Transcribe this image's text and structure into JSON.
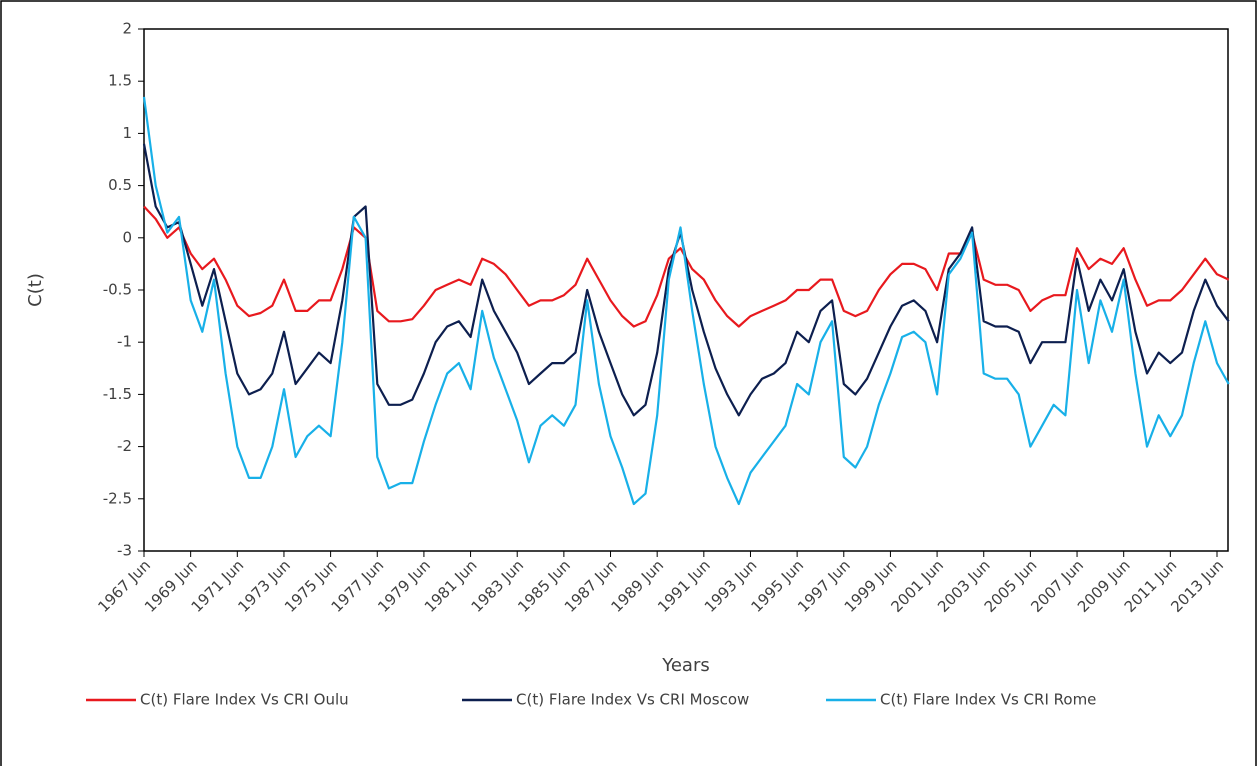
{
  "chart_data": {
    "type": "line",
    "x_label": "Years",
    "y_label": "C(t)",
    "categories": [
      "1967 Jun",
      null,
      null,
      null,
      "1969 Jun",
      null,
      null,
      null,
      "1971 Jun",
      null,
      null,
      null,
      "1973 Jun",
      null,
      null,
      null,
      "1975 Jun",
      null,
      null,
      null,
      "1977 Jun",
      null,
      null,
      null,
      "1979 Jun",
      null,
      null,
      null,
      "1981 Jun",
      null,
      null,
      null,
      "1983 Jun",
      null,
      null,
      null,
      "1985 Jun",
      null,
      null,
      null,
      "1987 Jun",
      null,
      null,
      null,
      "1989 Jun",
      null,
      null,
      null,
      "1991 Jun",
      null,
      null,
      null,
      "1993 Jun",
      null,
      null,
      null,
      "1995 Jun",
      null,
      null,
      null,
      "1997 Jun",
      null,
      null,
      null,
      "1999 Jun",
      null,
      null,
      null,
      "2001 Jun",
      null,
      null,
      null,
      "2003 Jun",
      null,
      null,
      null,
      "2005 Jun",
      null,
      null,
      null,
      "2007 Jun",
      null,
      null,
      null,
      "2009 Jun",
      null,
      null,
      null,
      "2011 Jun",
      null,
      null,
      null,
      "2013 Jun",
      null
    ],
    "series": [
      {
        "name": "C(t) Flare Index Vs CRI Oulu",
        "color": "#e8191e",
        "values": [
          0.3,
          0.18,
          0.0,
          0.1,
          -0.15,
          -0.3,
          -0.2,
          -0.4,
          -0.65,
          -0.75,
          -0.72,
          -0.65,
          -0.4,
          -0.7,
          -0.7,
          -0.6,
          -0.6,
          -0.3,
          0.1,
          0.0,
          -0.7,
          -0.8,
          -0.8,
          -0.78,
          -0.65,
          -0.5,
          -0.45,
          -0.4,
          -0.45,
          -0.2,
          -0.25,
          -0.35,
          -0.5,
          -0.65,
          -0.6,
          -0.6,
          -0.55,
          -0.45,
          -0.2,
          -0.4,
          -0.6,
          -0.75,
          -0.85,
          -0.8,
          -0.55,
          -0.2,
          -0.1,
          -0.3,
          -0.4,
          -0.6,
          -0.75,
          -0.85,
          -0.75,
          -0.7,
          -0.65,
          -0.6,
          -0.5,
          -0.5,
          -0.4,
          -0.4,
          -0.7,
          -0.75,
          -0.7,
          -0.5,
          -0.35,
          -0.25,
          -0.25,
          -0.3,
          -0.5,
          -0.15,
          -0.15,
          0.05,
          -0.4,
          -0.45,
          -0.45,
          -0.5,
          -0.7,
          -0.6,
          -0.55,
          -0.55,
          -0.1,
          -0.3,
          -0.2,
          -0.25,
          -0.1,
          -0.4,
          -0.65,
          -0.6,
          -0.6,
          -0.5,
          -0.35,
          -0.2,
          -0.35,
          -0.4
        ]
      },
      {
        "name": "C(t) Flare Index Vs CRI Moscow",
        "color": "#0d1f4f",
        "values": [
          0.9,
          0.3,
          0.1,
          0.15,
          -0.25,
          -0.65,
          -0.3,
          -0.8,
          -1.3,
          -1.5,
          -1.45,
          -1.3,
          -0.9,
          -1.4,
          -1.25,
          -1.1,
          -1.2,
          -0.6,
          0.2,
          0.3,
          -1.4,
          -1.6,
          -1.6,
          -1.55,
          -1.3,
          -1.0,
          -0.85,
          -0.8,
          -0.95,
          -0.4,
          -0.7,
          -0.9,
          -1.1,
          -1.4,
          -1.3,
          -1.2,
          -1.2,
          -1.1,
          -0.5,
          -0.9,
          -1.2,
          -1.5,
          -1.7,
          -1.6,
          -1.1,
          -0.3,
          0.05,
          -0.5,
          -0.9,
          -1.25,
          -1.5,
          -1.7,
          -1.5,
          -1.35,
          -1.3,
          -1.2,
          -0.9,
          -1.0,
          -0.7,
          -0.6,
          -1.4,
          -1.5,
          -1.35,
          -1.1,
          -0.85,
          -0.65,
          -0.6,
          -0.7,
          -1.0,
          -0.3,
          -0.15,
          0.1,
          -0.8,
          -0.85,
          -0.85,
          -0.9,
          -1.2,
          -1.0,
          -1.0,
          -1.0,
          -0.2,
          -0.7,
          -0.4,
          -0.6,
          -0.3,
          -0.9,
          -1.3,
          -1.1,
          -1.2,
          -1.1,
          -0.7,
          -0.4,
          -0.65,
          -0.8
        ]
      },
      {
        "name": "C(t) Flare Index Vs CRI Rome",
        "color": "#18b0e8",
        "values": [
          1.35,
          0.5,
          0.05,
          0.2,
          -0.6,
          -0.9,
          -0.4,
          -1.3,
          -2.0,
          -2.3,
          -2.3,
          -2.0,
          -1.45,
          -2.1,
          -1.9,
          -1.8,
          -1.9,
          -1.0,
          0.2,
          0.0,
          -2.1,
          -2.4,
          -2.35,
          -2.35,
          -1.95,
          -1.6,
          -1.3,
          -1.2,
          -1.45,
          -0.7,
          -1.15,
          -1.45,
          -1.75,
          -2.15,
          -1.8,
          -1.7,
          -1.8,
          -1.6,
          -0.6,
          -1.4,
          -1.9,
          -2.2,
          -2.55,
          -2.45,
          -1.7,
          -0.4,
          0.1,
          -0.7,
          -1.4,
          -2.0,
          -2.3,
          -2.55,
          -2.25,
          -2.1,
          -1.95,
          -1.8,
          -1.4,
          -1.5,
          -1.0,
          -0.8,
          -2.1,
          -2.2,
          -2.0,
          -1.6,
          -1.3,
          -0.95,
          -0.9,
          -1.0,
          -1.5,
          -0.35,
          -0.2,
          0.05,
          -1.3,
          -1.35,
          -1.35,
          -1.5,
          -2.0,
          -1.8,
          -1.6,
          -1.7,
          -0.5,
          -1.2,
          -0.6,
          -0.9,
          -0.4,
          -1.3,
          -2.0,
          -1.7,
          -1.9,
          -1.7,
          -1.2,
          -0.8,
          -1.2,
          -1.4
        ]
      }
    ],
    "ylim": [
      -3,
      2
    ],
    "yticks": [
      -3,
      -2.5,
      -2,
      -1.5,
      -1,
      -0.5,
      0,
      0.5,
      1,
      1.5,
      2
    ],
    "legend": "bottom"
  }
}
